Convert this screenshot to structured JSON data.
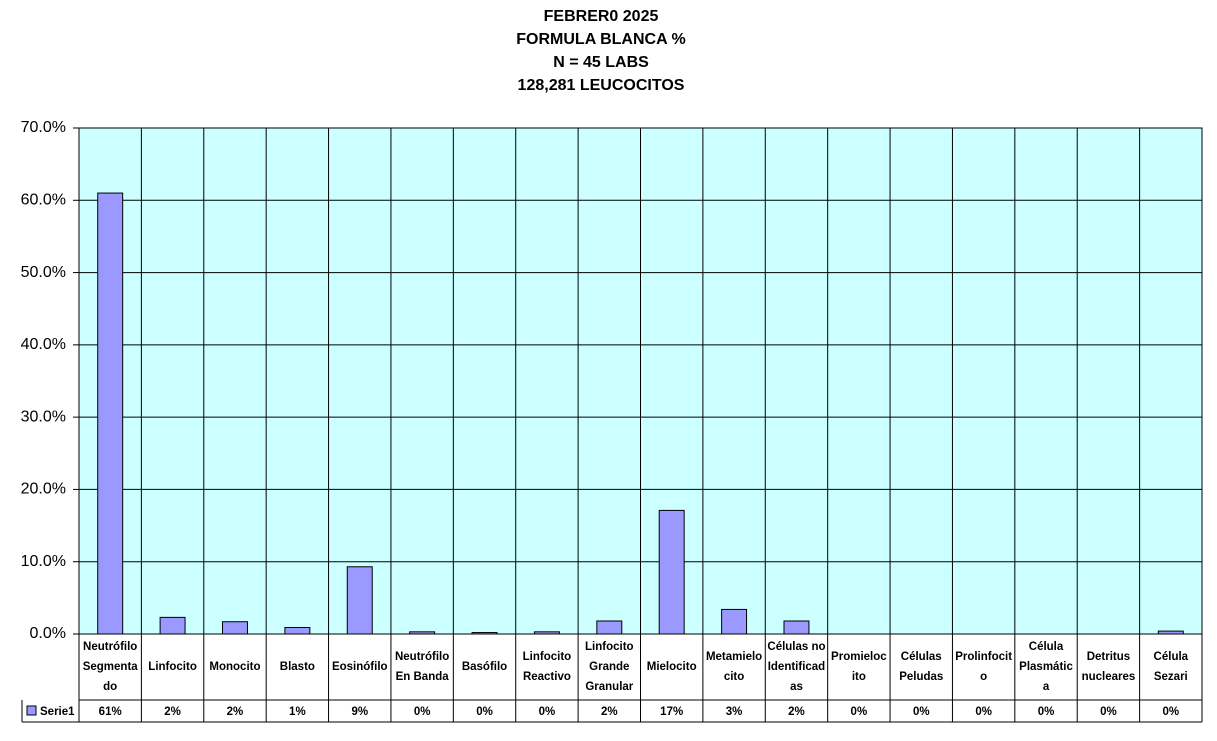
{
  "chart_data": {
    "type": "bar",
    "title": [
      "FEBRER0  2025",
      "FORMULA BLANCA %",
      "N = 45 LABS",
      "128,281 LEUCOCITOS"
    ],
    "categories": [
      [
        "Neutrófilo",
        "Segmenta",
        "do"
      ],
      [
        "Linfocito"
      ],
      [
        "Monocito"
      ],
      [
        "Blasto"
      ],
      [
        "Eosinófilo"
      ],
      [
        "Neutrófilo",
        "En Banda"
      ],
      [
        "Basófilo"
      ],
      [
        "Linfocito",
        "Reactivo"
      ],
      [
        "Linfocito",
        "Grande",
        "Granular"
      ],
      [
        "Mielocito"
      ],
      [
        "Metamielo",
        "cito"
      ],
      [
        "Células no",
        "Identificad",
        "as"
      ],
      [
        "Promieloc",
        "ito"
      ],
      [
        "Células",
        "Peludas"
      ],
      [
        "Prolinfocit",
        "o"
      ],
      [
        "Célula",
        "Plasmátic",
        "a"
      ],
      [
        "Detritus",
        "nucleares"
      ],
      [
        "Célula",
        "Sezari"
      ]
    ],
    "series": [
      {
        "name": "Serie1",
        "color": "#9999ff",
        "values": [
          61.0,
          2.3,
          1.7,
          0.9,
          9.3,
          0.3,
          0.2,
          0.3,
          1.8,
          17.1,
          3.4,
          1.8,
          0,
          0,
          0,
          0,
          0,
          0.4
        ],
        "value_labels": [
          "61%",
          "2%",
          "2%",
          "1%",
          "9%",
          "0%",
          "0%",
          "0%",
          "2%",
          "17%",
          "3%",
          "2%",
          "0%",
          "0%",
          "0%",
          "0%",
          "0%",
          "0%"
        ]
      }
    ],
    "ylim": [
      0,
      70
    ],
    "yticks": [
      {
        "value": 0,
        "label": "0.0%"
      },
      {
        "value": 10,
        "label": "10.0%"
      },
      {
        "value": 20,
        "label": "20.0%"
      },
      {
        "value": 30,
        "label": "30.0%"
      },
      {
        "value": 40,
        "label": "40.0%"
      },
      {
        "value": 50,
        "label": "50.0%"
      },
      {
        "value": 60,
        "label": "60.0%"
      },
      {
        "value": 70,
        "label": "70.0%"
      }
    ],
    "grid": true,
    "plot_background": "#ccffff"
  }
}
